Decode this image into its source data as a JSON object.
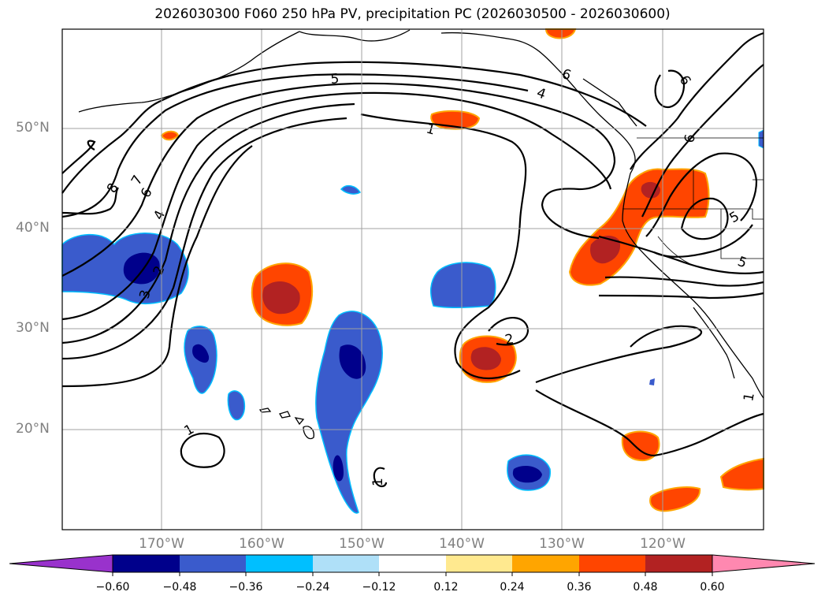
{
  "title": "2026030300 F060 250 hPa PV, precipitation PC (2026030500 - 2026030600)",
  "lat_labels": [
    "50°N",
    "40°N",
    "30°N",
    "20°N"
  ],
  "lon_labels": [
    "170°W",
    "160°W",
    "150°W",
    "140°W",
    "130°W",
    "120°W"
  ],
  "contour_labels": [
    "1",
    "2",
    "3",
    "4",
    "5",
    "6",
    "7",
    "8",
    "1",
    "1",
    "1",
    "2",
    "4",
    "5",
    "6",
    "5",
    "6",
    "6",
    "7"
  ],
  "colorbar": {
    "ticks": [
      "−0.60",
      "−0.48",
      "−0.36",
      "−0.24",
      "−0.12",
      "0.12",
      "0.24",
      "0.36",
      "0.48",
      "0.60"
    ],
    "colors": [
      "#9932cc",
      "#00008b",
      "#3a5bcc",
      "#00bfff",
      "#afe0f8",
      "#ffffff",
      "#ffe98f",
      "#ffa500",
      "#ff4500",
      "#b22222",
      "#ff88b0"
    ]
  }
}
